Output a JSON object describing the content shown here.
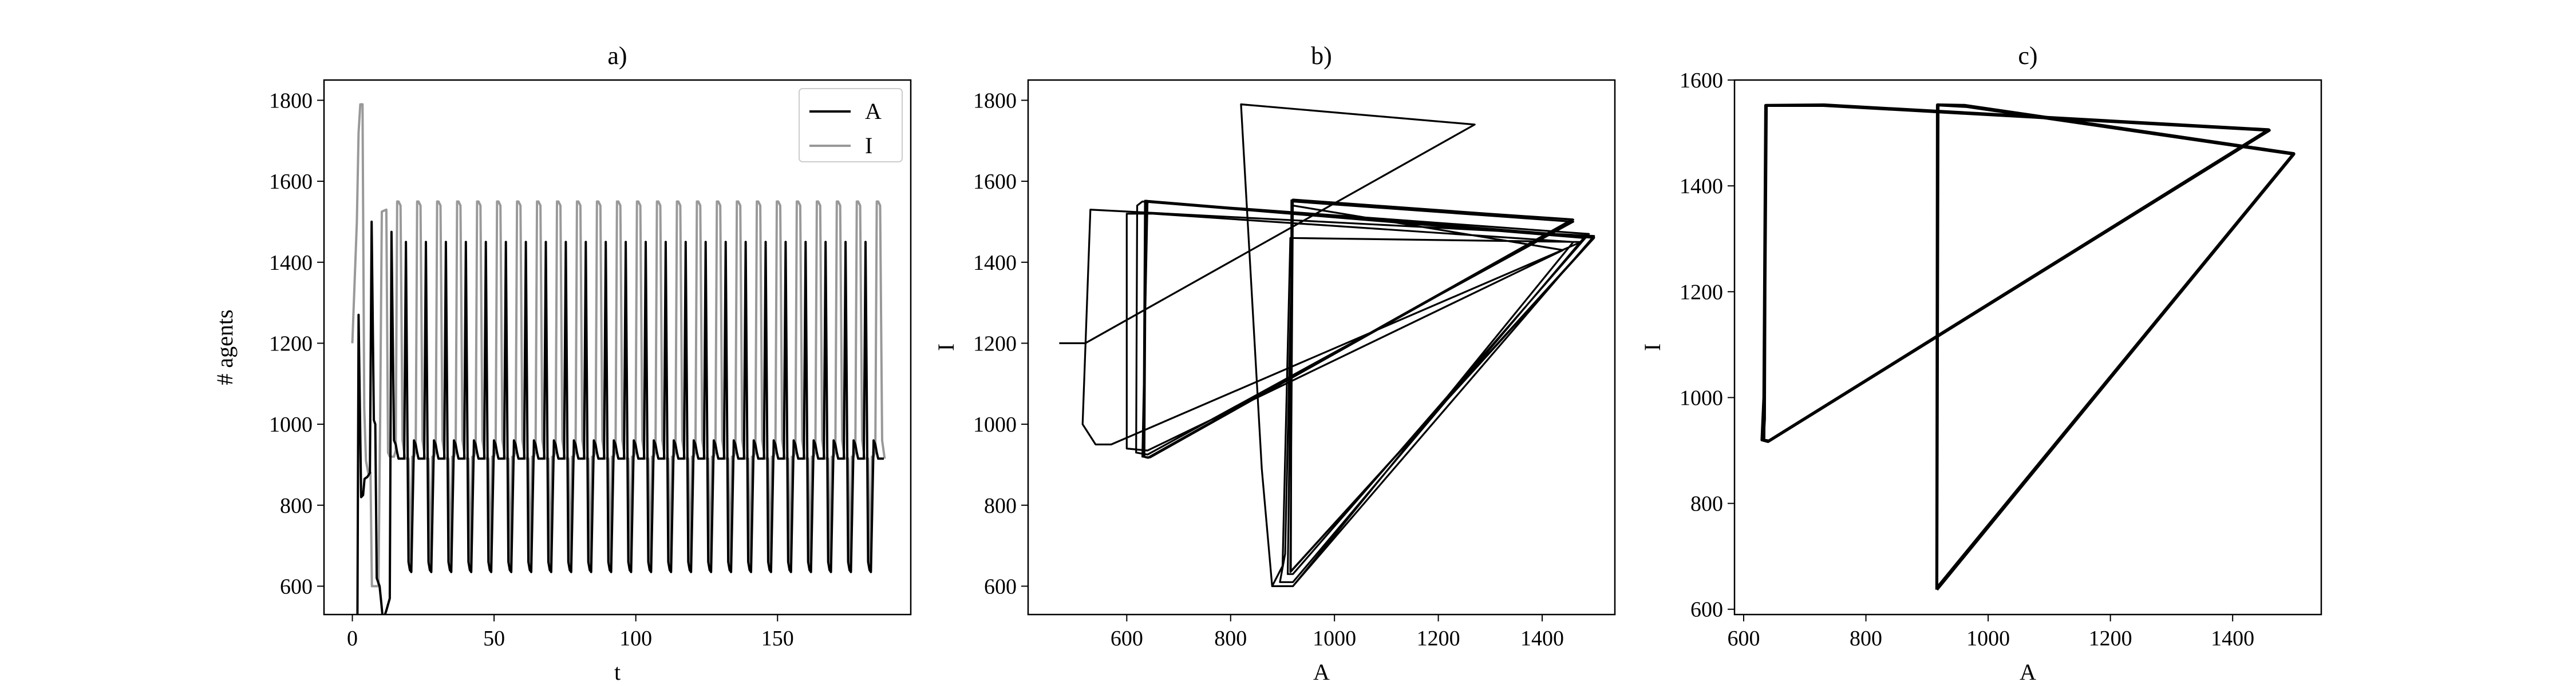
{
  "chart_data": [
    {
      "panel": "a",
      "type": "line",
      "title": "a)",
      "xlabel": "t",
      "ylabel": "# agents",
      "xlim": [
        -10,
        197
      ],
      "ylim": [
        530,
        1850
      ],
      "xticks": [
        0,
        50,
        100,
        150
      ],
      "yticks": [
        600,
        800,
        1000,
        1200,
        1400,
        1600,
        1800
      ],
      "legend": {
        "position": "top-right",
        "entries": [
          "A",
          "I"
        ]
      },
      "period": 7.05,
      "n_cycles": 27,
      "series": [
        {
          "name": "A",
          "color": "#000000",
          "transient": [
            [
              0,
              470
            ],
            [
              1,
              500
            ],
            [
              1.8,
              520
            ],
            [
              2.2,
              1270
            ],
            [
              3.1,
              820
            ],
            [
              3.8,
              825
            ],
            [
              4.3,
              865
            ],
            [
              5.3,
              870
            ],
            [
              6.2,
              880
            ],
            [
              6.8,
              1500
            ],
            [
              7.6,
              1010
            ],
            [
              8.1,
              1000
            ],
            [
              8.6,
              620
            ],
            [
              9.6,
              600
            ],
            [
              10.2,
              560
            ],
            [
              10.8,
              515
            ],
            [
              12.0,
              540
            ],
            [
              13.2,
              570
            ],
            [
              13.8,
              1475
            ],
            [
              14.7,
              960
            ]
          ],
          "cycle_x_offsets": [
            0,
            0.6,
            1.1,
            1.6,
            2.6,
            3.6,
            4.2,
            5.1,
            5.6,
            6.1,
            7.05
          ],
          "cycle_y_values": [
            960,
            950,
            930,
            915,
            915,
            915,
            1450,
            660,
            640,
            635,
            960
          ]
        },
        {
          "name": "I",
          "color": "#999999",
          "transient": [
            [
              0,
              1200
            ],
            [
              1.6,
              1500
            ],
            [
              2.2,
              1720
            ],
            [
              2.8,
              1790
            ],
            [
              3.6,
              1790
            ],
            [
              4.2,
              1040
            ],
            [
              4.8,
              910
            ],
            [
              5.6,
              880
            ],
            [
              6.4,
              880
            ],
            [
              6.9,
              600
            ],
            [
              8.1,
              600
            ],
            [
              9.2,
              600
            ],
            [
              9.8,
              1000
            ],
            [
              10.4,
              1525
            ],
            [
              12.0,
              1530
            ],
            [
              12.6,
              930
            ],
            [
              13.2,
              920
            ],
            [
              14.1,
              920
            ]
          ],
          "cycle_x_offsets": [
            0,
            0.6,
            1.2,
            1.7,
            2.2,
            2.9,
            3.6,
            4.5,
            5.0,
            5.7,
            6.4,
            7.05
          ],
          "cycle_y_values": [
            920,
            920,
            935,
            1550,
            1550,
            1540,
            960,
            915,
            915,
            915,
            640,
            920
          ]
        }
      ]
    },
    {
      "panel": "b",
      "type": "line",
      "title": "b)",
      "xlabel": "A",
      "ylabel": "I",
      "xlim": [
        410,
        1540
      ],
      "ylim": [
        530,
        1850
      ],
      "xticks": [
        600,
        800,
        1000,
        1200,
        1400
      ],
      "yticks": [
        600,
        800,
        1000,
        1200,
        1400,
        1600,
        1800
      ],
      "series": [
        {
          "name": "",
          "color": "#000000",
          "points": [
            [
              470,
              1200
            ],
            [
              520,
              1200
            ],
            [
              1270,
              1740
            ],
            [
              820,
              1790
            ],
            [
              860,
              890
            ],
            [
              880,
              600
            ],
            [
              920,
              600
            ],
            [
              1500,
              1465
            ],
            [
              530,
              1530
            ],
            [
              515,
              1000
            ],
            [
              540,
              950
            ],
            [
              570,
              950
            ],
            [
              1475,
              1450
            ],
            [
              915,
              1460
            ],
            [
              900,
              650
            ],
            [
              880,
              600
            ],
            [
              920,
              600
            ],
            [
              1460,
              1450
            ],
            [
              650,
              1520
            ],
            [
              600,
              1520
            ],
            [
              600,
              940
            ],
            [
              640,
              935
            ],
            [
              1440,
              1430
            ],
            [
              920,
              1540
            ],
            [
              905,
              680
            ],
            [
              895,
              610
            ],
            [
              920,
              610
            ],
            [
              1480,
              1460
            ],
            [
              630,
              1550
            ],
            [
              620,
              1540
            ],
            [
              618,
              930
            ],
            [
              640,
              925
            ],
            [
              1460,
              1500
            ],
            [
              920,
              1550
            ],
            [
              910,
              630
            ],
            [
              920,
              630
            ],
            [
              1490,
              1470
            ],
            [
              640,
              1550
            ],
            [
              630,
              920
            ],
            [
              645,
              918
            ],
            [
              1460,
              1505
            ],
            [
              920,
              1555
            ],
            [
              915,
              635
            ],
            [
              1500,
              1462
            ],
            [
              635,
              1552
            ],
            [
              632,
              920
            ],
            [
              640,
              917
            ],
            [
              1458,
              1506
            ],
            [
              918,
              1553
            ],
            [
              916,
              636
            ],
            [
              1500,
              1460
            ],
            [
              636,
              1552
            ],
            [
              633,
              920
            ],
            [
              642,
              917
            ],
            [
              1459,
              1506
            ],
            [
              917,
              1553
            ],
            [
              916,
              637
            ],
            [
              1500,
              1460
            ],
            [
              637,
              1552
            ],
            [
              634,
              920
            ],
            [
              642,
              917
            ],
            [
              1460,
              1505
            ],
            [
              918,
              1553
            ],
            [
              916,
              637
            ],
            [
              1500,
              1461
            ],
            [
              636,
              1552
            ],
            [
              634,
              920
            ],
            [
              642,
              917
            ],
            [
              1459,
              1506
            ]
          ]
        }
      ]
    },
    {
      "panel": "c",
      "type": "line",
      "title": "c)",
      "xlabel": "A",
      "ylabel": "I",
      "xlim": [
        585,
        1545
      ],
      "ylim": [
        590,
        1600
      ],
      "xticks": [
        600,
        800,
        1000,
        1200,
        1400
      ],
      "yticks": [
        600,
        800,
        1000,
        1200,
        1400,
        1600
      ],
      "series": [
        {
          "name": "",
          "color": "#000000",
          "cycle": [
            [
              630,
              920
            ],
            [
              640,
              917
            ],
            [
              1460,
              1505
            ],
            [
              730,
              1552
            ],
            [
              636,
              1552
            ],
            [
              633,
              1000
            ],
            [
              630,
              920
            ],
            [
              640,
              917
            ],
            [
              1460,
              1505
            ],
            [
              730,
              1552
            ],
            [
              636,
              1552
            ],
            [
              634,
              960
            ],
            [
              632,
              920
            ],
            [
              641,
              918
            ],
            [
              1459,
              1506
            ],
            [
              731,
              1553
            ],
            [
              637,
              1552
            ],
            [
              633,
              920
            ]
          ],
          "cycle2": [
            [
              916,
              637
            ],
            [
              1500,
              1460
            ],
            [
              965,
              1550
            ],
            [
              918,
              1553
            ],
            [
              916,
              640
            ],
            [
              1500,
              1461
            ],
            [
              962,
              1552
            ],
            [
              917,
              1553
            ],
            [
              916,
              637
            ]
          ]
        }
      ]
    }
  ]
}
